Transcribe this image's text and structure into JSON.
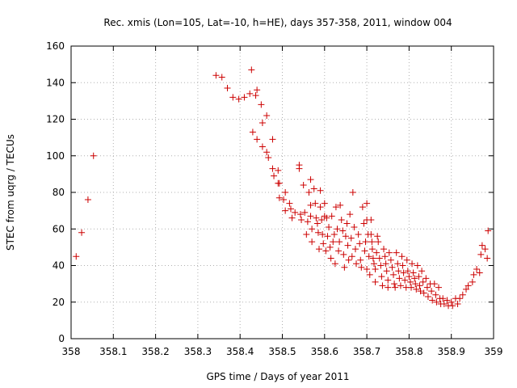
{
  "chart_data": {
    "type": "scatter",
    "title": "Rec. xmis (Lon=105, Lat=-10, h=HE), days 357-358, 2011, window 004",
    "xlabel": "GPS time / Days of year 2011",
    "ylabel": "STEC from uqrg / TECUs",
    "xlim": [
      358,
      359
    ],
    "ylim": [
      0,
      160
    ],
    "xticks": [
      358,
      358.1,
      358.2,
      358.3,
      358.4,
      358.5,
      358.6,
      358.7,
      358.8,
      358.9,
      359
    ],
    "xtick_labels": [
      "358",
      "358.1",
      "358.2",
      "358.3",
      "358.4",
      "358.5",
      "358.6",
      "358.7",
      "358.8",
      "358.9",
      "359"
    ],
    "yticks": [
      0,
      20,
      40,
      60,
      80,
      100,
      120,
      140,
      160
    ],
    "ytick_labels": [
      "0",
      "20",
      "40",
      "60",
      "80",
      "100",
      "120",
      "140",
      "160"
    ],
    "marker": "+",
    "color": "#cc0000",
    "series": [
      {
        "name": "STEC",
        "points": [
          [
            358.012,
            45
          ],
          [
            358.025,
            58
          ],
          [
            358.04,
            76
          ],
          [
            358.053,
            100
          ],
          [
            358.343,
            144
          ],
          [
            358.357,
            143
          ],
          [
            358.37,
            137
          ],
          [
            358.383,
            132
          ],
          [
            358.397,
            131
          ],
          [
            358.41,
            132
          ],
          [
            358.423,
            134
          ],
          [
            358.427,
            147
          ],
          [
            358.437,
            133
          ],
          [
            358.44,
            136
          ],
          [
            358.45,
            128
          ],
          [
            358.453,
            118
          ],
          [
            358.463,
            122
          ],
          [
            358.43,
            113
          ],
          [
            358.44,
            109
          ],
          [
            358.453,
            105
          ],
          [
            358.463,
            102
          ],
          [
            358.467,
            99
          ],
          [
            358.477,
            109
          ],
          [
            358.477,
            93
          ],
          [
            358.48,
            89
          ],
          [
            358.49,
            92
          ],
          [
            358.49,
            85
          ],
          [
            358.493,
            85
          ],
          [
            358.493,
            77
          ],
          [
            358.503,
            76
          ],
          [
            358.507,
            80
          ],
          [
            358.507,
            70
          ],
          [
            358.517,
            74
          ],
          [
            358.52,
            71
          ],
          [
            358.523,
            66
          ],
          [
            358.53,
            69
          ],
          [
            358.54,
            95
          ],
          [
            358.54,
            93
          ],
          [
            358.543,
            68
          ],
          [
            358.545,
            65
          ],
          [
            358.55,
            84
          ],
          [
            358.553,
            69
          ],
          [
            358.557,
            57
          ],
          [
            358.56,
            64
          ],
          [
            358.563,
            80
          ],
          [
            358.567,
            87
          ],
          [
            358.567,
            73
          ],
          [
            358.567,
            67
          ],
          [
            358.57,
            60
          ],
          [
            358.57,
            53
          ],
          [
            358.575,
            82
          ],
          [
            358.578,
            74
          ],
          [
            358.58,
            66
          ],
          [
            358.583,
            63
          ],
          [
            358.585,
            58
          ],
          [
            358.587,
            49
          ],
          [
            358.59,
            81
          ],
          [
            358.59,
            72
          ],
          [
            358.593,
            65
          ],
          [
            358.595,
            57
          ],
          [
            358.597,
            52
          ],
          [
            358.6,
            74
          ],
          [
            358.6,
            67
          ],
          [
            358.603,
            48
          ],
          [
            358.605,
            66
          ],
          [
            358.607,
            56
          ],
          [
            358.61,
            61
          ],
          [
            358.613,
            50
          ],
          [
            358.615,
            44
          ],
          [
            358.617,
            67
          ],
          [
            358.62,
            53
          ],
          [
            358.623,
            57
          ],
          [
            358.625,
            41
          ],
          [
            358.627,
            72
          ],
          [
            358.63,
            60
          ],
          [
            358.633,
            48
          ],
          [
            358.635,
            53
          ],
          [
            358.637,
            73
          ],
          [
            358.64,
            65
          ],
          [
            358.643,
            59
          ],
          [
            358.645,
            46
          ],
          [
            358.647,
            39
          ],
          [
            358.65,
            56
          ],
          [
            358.653,
            63
          ],
          [
            358.655,
            51
          ],
          [
            358.657,
            43
          ],
          [
            358.66,
            68
          ],
          [
            358.663,
            55
          ],
          [
            358.665,
            45
          ],
          [
            358.667,
            80
          ],
          [
            358.67,
            61
          ],
          [
            358.673,
            49
          ],
          [
            358.675,
            41
          ],
          [
            358.68,
            57
          ],
          [
            358.683,
            52
          ],
          [
            358.685,
            43
          ],
          [
            358.687,
            39
          ],
          [
            358.69,
            72
          ],
          [
            358.693,
            63
          ],
          [
            358.695,
            48
          ],
          [
            358.697,
            53
          ],
          [
            358.7,
            74
          ],
          [
            358.7,
            65
          ],
          [
            358.7,
            38
          ],
          [
            358.703,
            57
          ],
          [
            358.705,
            45
          ],
          [
            358.707,
            35
          ],
          [
            358.71,
            65
          ],
          [
            358.71,
            57
          ],
          [
            358.712,
            53
          ],
          [
            358.713,
            49
          ],
          [
            358.715,
            44
          ],
          [
            358.717,
            41
          ],
          [
            358.72,
            38
          ],
          [
            358.72,
            31
          ],
          [
            358.723,
            47
          ],
          [
            358.725,
            56
          ],
          [
            358.727,
            53
          ],
          [
            358.73,
            44
          ],
          [
            358.733,
            40
          ],
          [
            358.735,
            34
          ],
          [
            358.737,
            29
          ],
          [
            358.74,
            49
          ],
          [
            358.743,
            45
          ],
          [
            358.745,
            41
          ],
          [
            358.747,
            37
          ],
          [
            358.75,
            32
          ],
          [
            358.75,
            28
          ],
          [
            358.753,
            47
          ],
          [
            358.757,
            43
          ],
          [
            358.76,
            39
          ],
          [
            358.763,
            35
          ],
          [
            358.765,
            30
          ],
          [
            358.767,
            28
          ],
          [
            358.77,
            47
          ],
          [
            358.773,
            41
          ],
          [
            358.775,
            37
          ],
          [
            358.777,
            33
          ],
          [
            358.78,
            29
          ],
          [
            358.783,
            45
          ],
          [
            358.785,
            40
          ],
          [
            358.787,
            36
          ],
          [
            358.79,
            32
          ],
          [
            358.793,
            28
          ],
          [
            358.795,
            43
          ],
          [
            358.797,
            37
          ],
          [
            358.8,
            34
          ],
          [
            358.803,
            31
          ],
          [
            358.805,
            28
          ],
          [
            358.807,
            41
          ],
          [
            358.81,
            36
          ],
          [
            358.813,
            33
          ],
          [
            358.815,
            30
          ],
          [
            358.817,
            27
          ],
          [
            358.82,
            40
          ],
          [
            358.823,
            34
          ],
          [
            358.825,
            29
          ],
          [
            358.827,
            26
          ],
          [
            358.83,
            37
          ],
          [
            358.833,
            31
          ],
          [
            358.835,
            25
          ],
          [
            358.84,
            33
          ],
          [
            358.843,
            28
          ],
          [
            358.845,
            23
          ],
          [
            358.85,
            30
          ],
          [
            358.853,
            26
          ],
          [
            358.855,
            21
          ],
          [
            358.86,
            30
          ],
          [
            358.863,
            24
          ],
          [
            358.865,
            20
          ],
          [
            358.87,
            28
          ],
          [
            358.873,
            22
          ],
          [
            358.875,
            19
          ],
          [
            358.88,
            22
          ],
          [
            358.883,
            19
          ],
          [
            358.89,
            21
          ],
          [
            358.893,
            18
          ],
          [
            358.9,
            20
          ],
          [
            358.903,
            18
          ],
          [
            358.91,
            22
          ],
          [
            358.915,
            19
          ],
          [
            358.92,
            22
          ],
          [
            358.927,
            24
          ],
          [
            358.935,
            27
          ],
          [
            358.94,
            29
          ],
          [
            358.95,
            31
          ],
          [
            358.953,
            35
          ],
          [
            358.96,
            38
          ],
          [
            358.967,
            36
          ],
          [
            358.97,
            46
          ],
          [
            358.973,
            51
          ],
          [
            358.98,
            49
          ],
          [
            358.985,
            44
          ],
          [
            358.987,
            59
          ]
        ]
      }
    ]
  }
}
